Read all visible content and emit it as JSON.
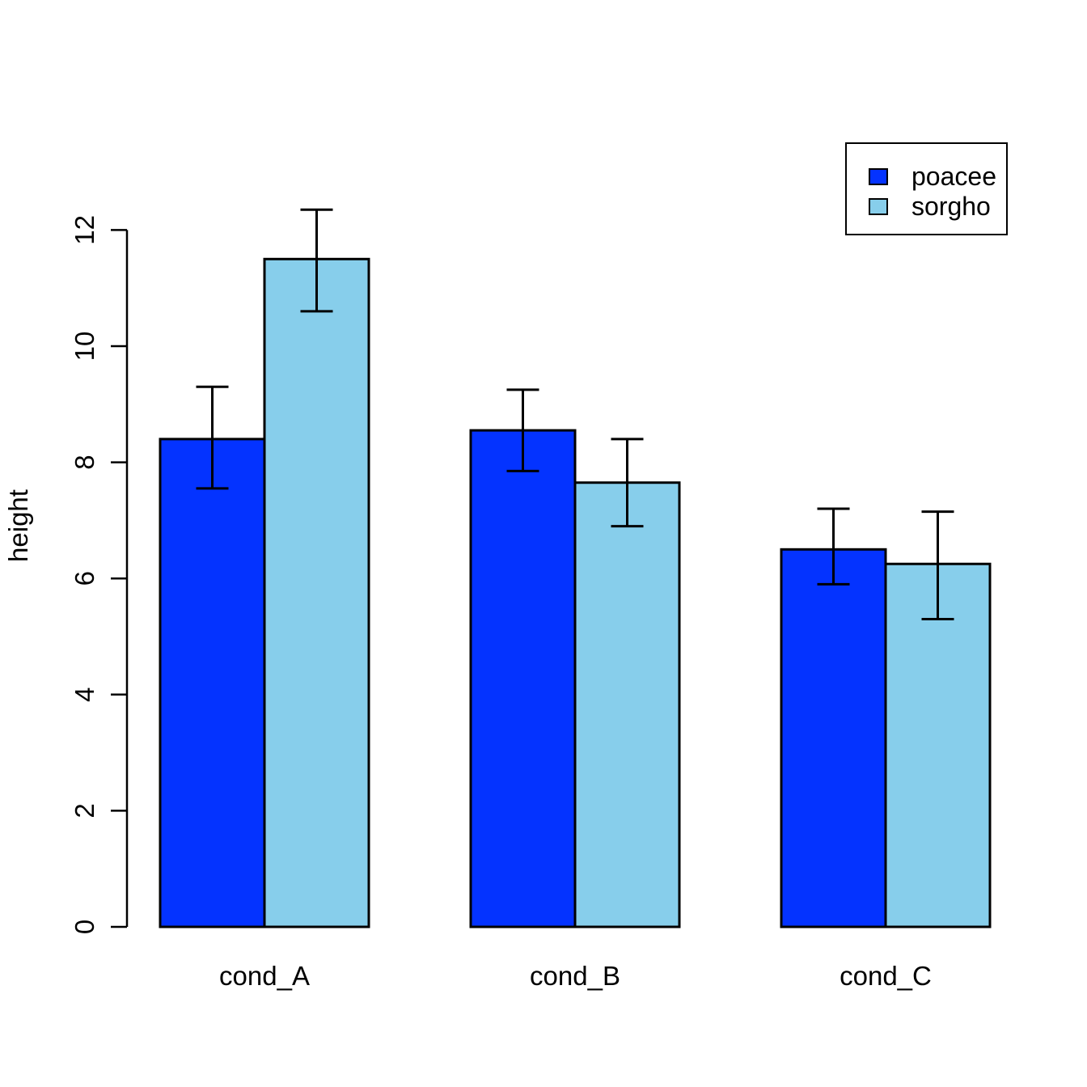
{
  "figure": {
    "background_color": "#ffffff"
  },
  "chart_data": {
    "type": "bar",
    "title": "",
    "xlabel": "",
    "ylabel": "height",
    "categories": [
      "cond_A",
      "cond_B",
      "cond_C"
    ],
    "series": [
      {
        "name": "poacee",
        "color": "#0433FF",
        "values": [
          8.4,
          8.55,
          6.5
        ],
        "error_low": [
          7.55,
          7.85,
          5.9
        ],
        "error_high": [
          9.3,
          9.25,
          7.2
        ]
      },
      {
        "name": "sorgho",
        "color": "#87CEEB",
        "values": [
          11.5,
          7.65,
          6.25
        ],
        "error_low": [
          10.6,
          6.9,
          5.3
        ],
        "error_high": [
          12.35,
          8.4,
          7.15
        ]
      }
    ],
    "yticks": [
      0,
      2,
      4,
      6,
      8,
      10,
      12
    ],
    "ylim": [
      0,
      12
    ],
    "grid": false,
    "bar_border_color": "#000000",
    "error_bar_color": "#000000",
    "axis_color": "#000000",
    "legend": {
      "position": "top-right"
    }
  }
}
